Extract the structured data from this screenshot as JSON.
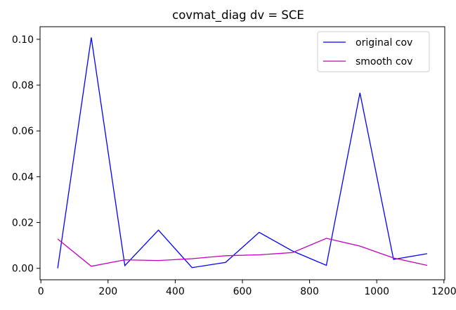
{
  "chart_data": {
    "type": "line",
    "title": "covmat_diag dv = SCE",
    "xlabel": "",
    "ylabel": "",
    "xlim": [
      -2.5,
      1202.5
    ],
    "ylim": [
      -0.005,
      0.1055
    ],
    "x_ticks": [
      0,
      200,
      400,
      600,
      800,
      1000,
      1200
    ],
    "x_tick_labels": [
      "0",
      "200",
      "400",
      "600",
      "800",
      "1000",
      "1200"
    ],
    "y_ticks": [
      0.0,
      0.02,
      0.04,
      0.06,
      0.08,
      0.1
    ],
    "y_tick_labels": [
      "0.00",
      "0.02",
      "0.04",
      "0.06",
      "0.08",
      "0.10"
    ],
    "grid": false,
    "legend_position": "top-right",
    "x": [
      50,
      150,
      250,
      350,
      450,
      550,
      650,
      750,
      850,
      950,
      1050,
      1150
    ],
    "series": [
      {
        "name": "original cov",
        "color": "#0000ff",
        "values": [
          0.0,
          0.1008,
          0.0012,
          0.0167,
          0.0003,
          0.0026,
          0.0157,
          0.0075,
          0.0013,
          0.0766,
          0.0039,
          0.0064
        ]
      },
      {
        "name": "smooth cov",
        "color": "#bf00bf",
        "values": [
          0.0128,
          0.0009,
          0.0037,
          0.0034,
          0.0042,
          0.0055,
          0.0059,
          0.0069,
          0.0131,
          0.0097,
          0.0045,
          0.0013
        ]
      }
    ]
  }
}
